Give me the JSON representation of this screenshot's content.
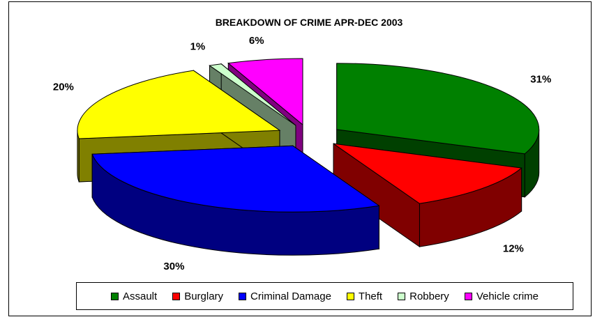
{
  "chart_data": {
    "type": "pie",
    "title": "BREAKDOWN OF CRIME APR-DEC 2003",
    "three_d": true,
    "exploded": true,
    "legend_position": "bottom",
    "categories": [
      "Assault",
      "Burglary",
      "Criminal Damage",
      "Theft",
      "Robbery",
      "Vehicle crime"
    ],
    "values": [
      31,
      12,
      30,
      20,
      1,
      6
    ],
    "value_labels": [
      "31%",
      "12%",
      "30%",
      "20%",
      "1%",
      "6%"
    ],
    "colors": [
      "#008000",
      "#ff0000",
      "#0000ff",
      "#ffff00",
      "#ccffcc",
      "#ff00ff"
    ]
  }
}
